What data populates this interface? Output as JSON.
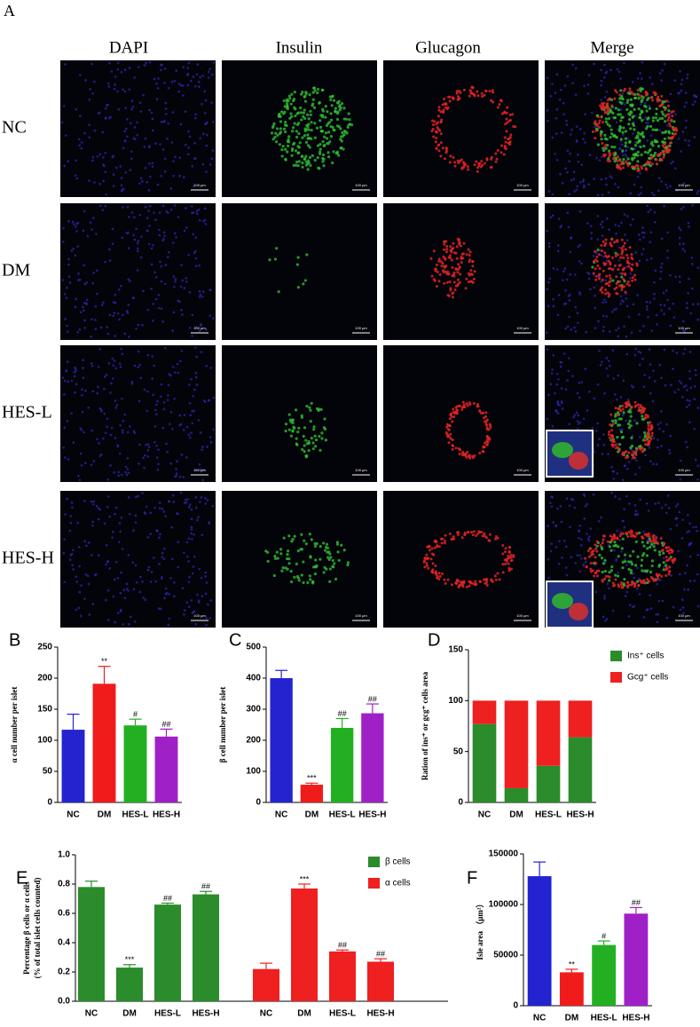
{
  "panel_a": {
    "label": "A",
    "columns": [
      "DAPI",
      "Insulin",
      "Glucagon",
      "Merge"
    ],
    "rows": [
      "NC",
      "DM",
      "HES-L",
      "HES-H"
    ],
    "scale_bar": "100 μm"
  },
  "chart_data": [
    {
      "type": "bar",
      "label": "B",
      "ylabel": "α cell number per islet",
      "categories": [
        "NC",
        "DM",
        "HES-L",
        "HES-H"
      ],
      "values": [
        117,
        191,
        124,
        106
      ],
      "errors": [
        25,
        28,
        10,
        12
      ],
      "annotations": [
        null,
        "**",
        "#",
        "##"
      ],
      "colors": [
        "#2323d0",
        "#f01c1c",
        "#22b022",
        "#a020c8"
      ],
      "ylim": [
        0,
        250
      ],
      "yticks": [
        0,
        50,
        100,
        150,
        200,
        250
      ]
    },
    {
      "type": "bar",
      "label": "C",
      "ylabel": "β cell number per islet",
      "categories": [
        "NC",
        "DM",
        "HES-L",
        "HES-H"
      ],
      "values": [
        400,
        57,
        240,
        287
      ],
      "errors": [
        25,
        5,
        30,
        30
      ],
      "annotations": [
        null,
        "***",
        "##",
        "##"
      ],
      "colors": [
        "#2323d0",
        "#f01c1c",
        "#22b022",
        "#a020c8"
      ],
      "ylim": [
        0,
        500
      ],
      "yticks": [
        0,
        100,
        200,
        300,
        400,
        500
      ]
    },
    {
      "type": "stacked_bar",
      "label": "D",
      "ylabel": "Ration of ins⁺ or gcg⁺ cells area",
      "categories": [
        "NC",
        "DM",
        "HES-L",
        "HES-H"
      ],
      "series": [
        {
          "name": "Ins⁺ cells",
          "color": "#2a8c2a",
          "values": [
            77,
            14,
            36,
            64
          ]
        },
        {
          "name": "Gcg⁺ cells",
          "color": "#ee2020",
          "values": [
            23,
            86,
            64,
            36
          ]
        }
      ],
      "ylim": [
        0,
        150
      ],
      "yticks": [
        0,
        50,
        100,
        150
      ]
    },
    {
      "type": "grouped_bar",
      "label": "E",
      "ylabel": [
        "Percentage β cells or α cells",
        "(% of total islet cells counted)"
      ],
      "categories": [
        "NC",
        "DM",
        "HES-L",
        "HES-H"
      ],
      "series": [
        {
          "name": "β cells",
          "color": "#2a8c2a",
          "values": [
            0.78,
            0.23,
            0.66,
            0.73
          ],
          "errors": [
            0.04,
            0.02,
            0.01,
            0.02
          ],
          "annotations": [
            null,
            "***",
            "##",
            "##"
          ]
        },
        {
          "name": "α cells",
          "color": "#ee2020",
          "values": [
            0.22,
            0.77,
            0.34,
            0.27
          ],
          "errors": [
            0.04,
            0.03,
            0.01,
            0.02
          ],
          "annotations": [
            null,
            "***",
            "##",
            "##"
          ]
        }
      ],
      "ylim": [
        0,
        1
      ],
      "yticks": [
        {
          "value": 0,
          "label": "0.0"
        },
        0.2,
        0.4,
        0.6,
        0.8,
        {
          "value": 1,
          "label": "1.0"
        }
      ]
    },
    {
      "type": "bar",
      "label": "F",
      "ylabel": "Isle area （μm²）",
      "categories": [
        "NC",
        "DM",
        "HES-L",
        "HES-H"
      ],
      "values": [
        128000,
        33000,
        60000,
        91000
      ],
      "errors": [
        14000,
        3000,
        4000,
        6000
      ],
      "annotations": [
        null,
        "**",
        "#",
        "##"
      ],
      "colors": [
        "#2323d0",
        "#f01c1c",
        "#22b022",
        "#a020c8"
      ],
      "ylim": [
        0,
        150000
      ],
      "yticks": [
        0,
        50000,
        100000,
        150000
      ]
    }
  ]
}
